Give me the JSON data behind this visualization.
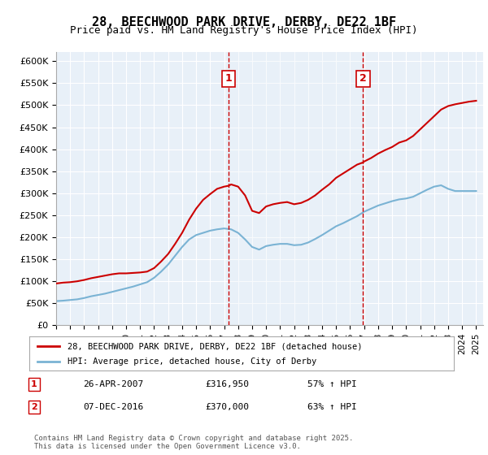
{
  "title": "28, BEECHWOOD PARK DRIVE, DERBY, DE22 1BF",
  "subtitle": "Price paid vs. HM Land Registry's House Price Index (HPI)",
  "ylabel_ticks": [
    "£0",
    "£50K",
    "£100K",
    "£150K",
    "£200K",
    "£250K",
    "£300K",
    "£350K",
    "£400K",
    "£450K",
    "£500K",
    "£550K",
    "£600K"
  ],
  "ytick_values": [
    0,
    50000,
    100000,
    150000,
    200000,
    250000,
    300000,
    350000,
    400000,
    450000,
    500000,
    550000,
    600000
  ],
  "ylim": [
    0,
    620000
  ],
  "xlim_start": 1995.0,
  "xlim_end": 2025.5,
  "background_color": "#dce9f5",
  "plot_bg_color": "#e8f0f8",
  "red_color": "#cc0000",
  "blue_color": "#7ab3d4",
  "sale1_year": 2007.32,
  "sale1_price": 316950,
  "sale2_year": 2016.93,
  "sale2_price": 370000,
  "sale1_label": "1",
  "sale2_label": "2",
  "legend_line1": "28, BEECHWOOD PARK DRIVE, DERBY, DE22 1BF (detached house)",
  "legend_line2": "HPI: Average price, detached house, City of Derby",
  "annotation1_date": "26-APR-2007",
  "annotation1_price": "£316,950",
  "annotation1_hpi": "57% ↑ HPI",
  "annotation2_date": "07-DEC-2016",
  "annotation2_price": "£370,000",
  "annotation2_hpi": "63% ↑ HPI",
  "footer": "Contains HM Land Registry data © Crown copyright and database right 2025.\nThis data is licensed under the Open Government Licence v3.0.",
  "red_x": [
    1995.0,
    1995.5,
    1996.0,
    1996.5,
    1997.0,
    1997.5,
    1998.0,
    1998.5,
    1999.0,
    1999.5,
    2000.0,
    2000.5,
    2001.0,
    2001.5,
    2002.0,
    2002.5,
    2003.0,
    2003.5,
    2004.0,
    2004.5,
    2005.0,
    2005.5,
    2006.0,
    2006.5,
    2007.0,
    2007.32,
    2007.5,
    2008.0,
    2008.5,
    2009.0,
    2009.5,
    2010.0,
    2010.5,
    2011.0,
    2011.5,
    2012.0,
    2012.5,
    2013.0,
    2013.5,
    2014.0,
    2014.5,
    2015.0,
    2015.5,
    2016.0,
    2016.5,
    2016.93,
    2017.0,
    2017.5,
    2018.0,
    2018.5,
    2019.0,
    2019.5,
    2020.0,
    2020.5,
    2021.0,
    2021.5,
    2022.0,
    2022.5,
    2023.0,
    2023.5,
    2024.0,
    2024.5,
    2025.0
  ],
  "red_y": [
    95000,
    97000,
    98000,
    100000,
    103000,
    107000,
    110000,
    113000,
    116000,
    118000,
    118000,
    119000,
    120000,
    122000,
    130000,
    145000,
    162000,
    185000,
    210000,
    240000,
    265000,
    285000,
    298000,
    310000,
    315000,
    316950,
    320000,
    315000,
    295000,
    260000,
    255000,
    270000,
    275000,
    278000,
    280000,
    275000,
    278000,
    285000,
    295000,
    308000,
    320000,
    335000,
    345000,
    355000,
    365000,
    370000,
    372000,
    380000,
    390000,
    398000,
    405000,
    415000,
    420000,
    430000,
    445000,
    460000,
    475000,
    490000,
    498000,
    502000,
    505000,
    508000,
    510000
  ],
  "blue_x": [
    1995.0,
    1995.5,
    1996.0,
    1996.5,
    1997.0,
    1997.5,
    1998.0,
    1998.5,
    1999.0,
    1999.5,
    2000.0,
    2000.5,
    2001.0,
    2001.5,
    2002.0,
    2002.5,
    2003.0,
    2003.5,
    2004.0,
    2004.5,
    2005.0,
    2005.5,
    2006.0,
    2006.5,
    2007.0,
    2007.5,
    2008.0,
    2008.5,
    2009.0,
    2009.5,
    2010.0,
    2010.5,
    2011.0,
    2011.5,
    2012.0,
    2012.5,
    2013.0,
    2013.5,
    2014.0,
    2014.5,
    2015.0,
    2015.5,
    2016.0,
    2016.5,
    2017.0,
    2017.5,
    2018.0,
    2018.5,
    2019.0,
    2019.5,
    2020.0,
    2020.5,
    2021.0,
    2021.5,
    2022.0,
    2022.5,
    2023.0,
    2023.5,
    2024.0,
    2024.5,
    2025.0
  ],
  "blue_y": [
    55000,
    56000,
    57500,
    59000,
    62000,
    66000,
    69000,
    72000,
    76000,
    80000,
    84000,
    88000,
    93000,
    98000,
    108000,
    122000,
    138000,
    158000,
    178000,
    195000,
    205000,
    210000,
    215000,
    218000,
    220000,
    218000,
    210000,
    195000,
    178000,
    172000,
    180000,
    183000,
    185000,
    185000,
    182000,
    183000,
    188000,
    196000,
    205000,
    215000,
    225000,
    232000,
    240000,
    248000,
    258000,
    265000,
    272000,
    277000,
    282000,
    286000,
    288000,
    292000,
    300000,
    308000,
    315000,
    318000,
    310000,
    305000,
    305000,
    305000,
    305000
  ]
}
